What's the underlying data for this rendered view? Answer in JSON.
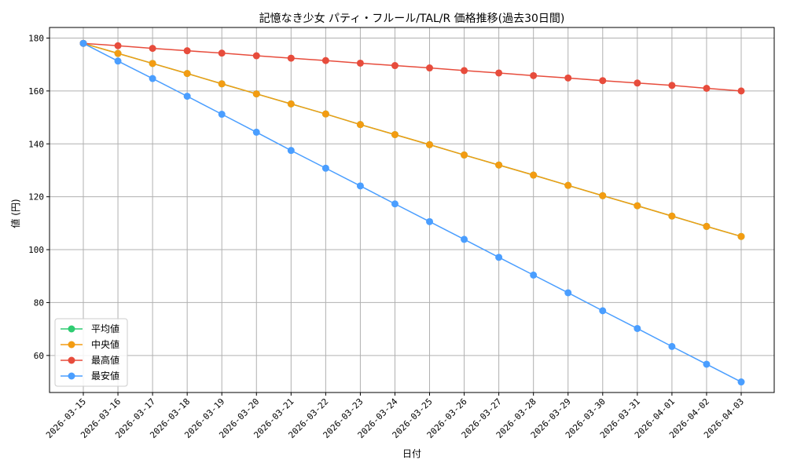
{
  "chart_data": {
    "type": "line",
    "title": "記憶なき少女 パティ・フルール/TAL/R 価格推移(過去30日間)",
    "xlabel": "日付",
    "ylabel": "値 (円)",
    "x": [
      "2026-03-15",
      "2026-03-16",
      "2026-03-17",
      "2026-03-18",
      "2026-03-19",
      "2026-03-20",
      "2026-03-21",
      "2026-03-22",
      "2026-03-23",
      "2026-03-24",
      "2026-03-25",
      "2026-03-26",
      "2026-03-27",
      "2026-03-28",
      "2026-03-29",
      "2026-03-30",
      "2026-03-31",
      "2026-04-01",
      "2026-04-02",
      "2026-04-03"
    ],
    "ylim": [
      46,
      184
    ],
    "yticks": [
      60,
      80,
      100,
      120,
      140,
      160,
      180
    ],
    "grid": true,
    "legend_position": "lower-left",
    "series": [
      {
        "name": "平均値",
        "color": "#2ecc71",
        "values": [
          178.0,
          174.2,
          170.4,
          166.6,
          162.7,
          158.9,
          155.1,
          151.3,
          147.3,
          143.5,
          139.7,
          135.8,
          132.0,
          128.2,
          124.3,
          120.4,
          116.6,
          112.7,
          108.8,
          105.0
        ]
      },
      {
        "name": "中央値",
        "color": "#f39c12",
        "values": [
          178.0,
          174.2,
          170.4,
          166.6,
          162.7,
          158.9,
          155.1,
          151.3,
          147.3,
          143.5,
          139.7,
          135.8,
          132.0,
          128.2,
          124.3,
          120.4,
          116.6,
          112.7,
          108.8,
          105.0
        ]
      },
      {
        "name": "最高値",
        "color": "#e74c3c",
        "values": [
          178.0,
          177.1,
          176.1,
          175.2,
          174.3,
          173.3,
          172.4,
          171.5,
          170.5,
          169.6,
          168.7,
          167.7,
          166.8,
          165.8,
          164.9,
          163.9,
          163.0,
          162.1,
          161.0,
          160.0
        ]
      },
      {
        "name": "最安値",
        "color": "#4a9eff",
        "values": [
          178.0,
          171.3,
          164.7,
          158.0,
          151.2,
          144.4,
          137.5,
          130.8,
          124.1,
          117.3,
          110.6,
          103.9,
          97.1,
          90.4,
          83.7,
          76.9,
          70.2,
          63.4,
          56.7,
          50.0
        ]
      }
    ]
  }
}
